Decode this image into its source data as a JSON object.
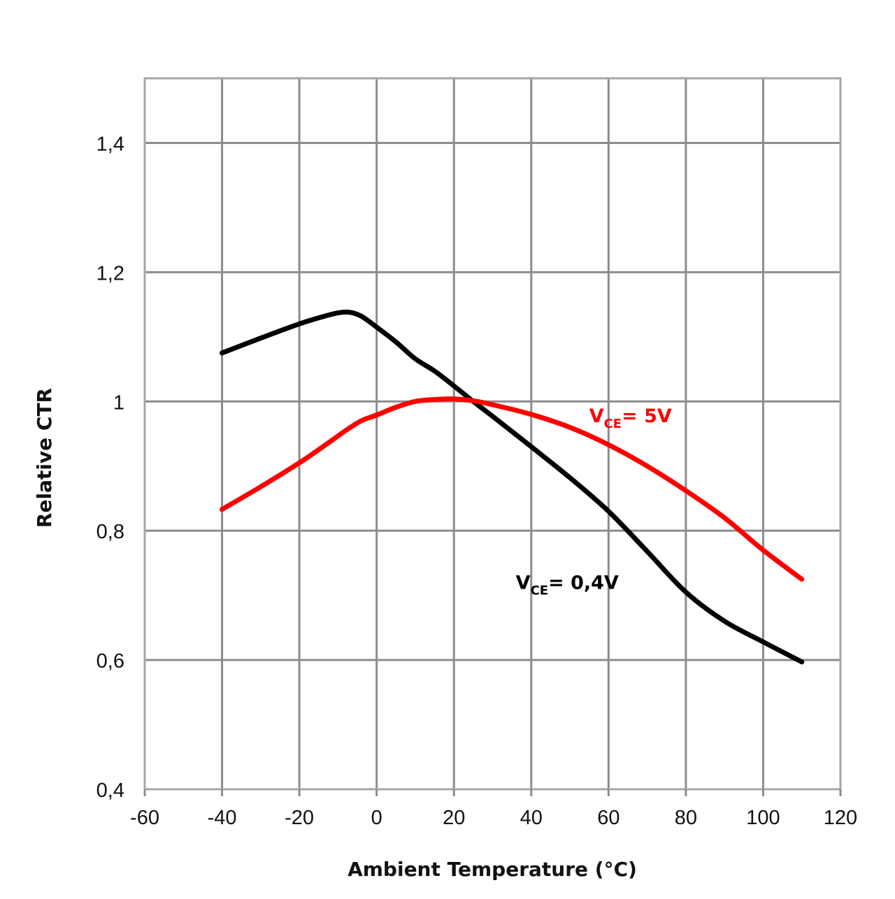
{
  "chart_data": {
    "type": "line",
    "title": "",
    "xlabel": "Ambient Temperature (°C)",
    "ylabel": "Relative CTR",
    "xlim": [
      -60,
      120
    ],
    "ylim": [
      0.4,
      1.5
    ],
    "grid": true,
    "x_ticks": [
      -60,
      -40,
      -20,
      0,
      20,
      40,
      60,
      80,
      100,
      120
    ],
    "x_tick_labels": [
      "-60",
      "-40",
      "-20",
      "0",
      "20",
      "40",
      "60",
      "80",
      "100",
      "120"
    ],
    "y_ticks": [
      0.4,
      0.6,
      0.8,
      1.0,
      1.2,
      1.4
    ],
    "y_tick_labels": [
      "0,4",
      "0,6",
      "0,8",
      "1",
      "1,2",
      "1,4"
    ],
    "series": [
      {
        "name": "VCE= 0,4V",
        "label_main": "V",
        "label_sub": "CE",
        "label_rest": "= 0,4V",
        "color": "#000000",
        "label_anchor": [
          36,
          0.71
        ],
        "x": [
          -40,
          -30,
          -20,
          -14,
          -10,
          -7,
          -4,
          0,
          5,
          10,
          15,
          20,
          25,
          30,
          40,
          50,
          60,
          70,
          80,
          90,
          100,
          110
        ],
        "y": [
          1.075,
          1.098,
          1.12,
          1.131,
          1.137,
          1.138,
          1.132,
          1.115,
          1.092,
          1.066,
          1.047,
          1.024,
          1.0,
          0.977,
          0.93,
          0.882,
          0.83,
          0.768,
          0.705,
          0.66,
          0.628,
          0.597
        ]
      },
      {
        "name": "VCE= 5V",
        "label_main": "V",
        "label_sub": "CE",
        "label_rest": "= 5V",
        "color": "#ff0000",
        "label_anchor": [
          55,
          0.968
        ],
        "x": [
          -40,
          -30,
          -20,
          -12,
          -8,
          -4,
          0,
          5,
          10,
          15,
          20,
          25,
          30,
          40,
          50,
          60,
          70,
          80,
          90,
          100,
          110
        ],
        "y": [
          0.833,
          0.868,
          0.905,
          0.938,
          0.955,
          0.97,
          0.979,
          0.991,
          1.0,
          1.003,
          1.004,
          1.001,
          0.995,
          0.98,
          0.96,
          0.933,
          0.9,
          0.862,
          0.82,
          0.77,
          0.725
        ]
      }
    ]
  }
}
